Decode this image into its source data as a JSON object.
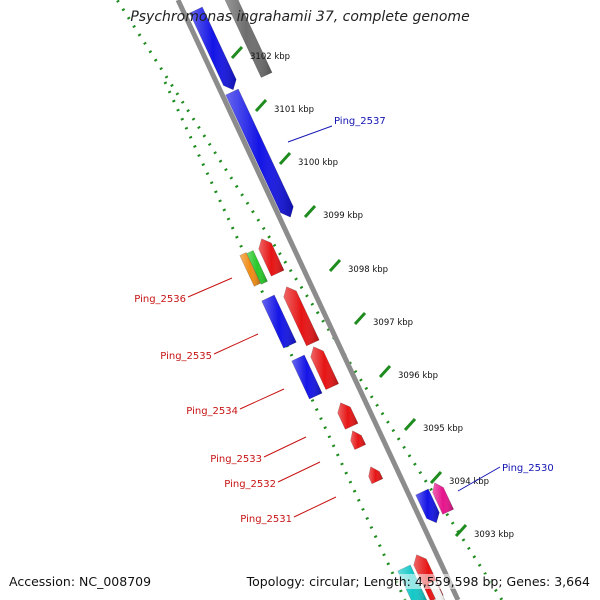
{
  "title": "Psychromonas ingrahamii 37, complete genome",
  "footer": {
    "accession": "Accession: NC_008709",
    "summary": "Topology: circular; Length: 4,559,598 bp; Genes: 3,664"
  },
  "colors": {
    "backbone": "#8c8c8c",
    "dots": "#1e8c1e",
    "forward_label": "#1414b4",
    "reverse_label": "#c81414"
  },
  "ticks": [
    "3102 kbp",
    "3101 kbp",
    "3100 kbp",
    "3099 kbp",
    "3098 kbp",
    "3097 kbp",
    "3096 kbp",
    "3095 kbp",
    "3094 kbp",
    "3093 kbp"
  ],
  "gene_labels": [
    {
      "text": "Ping_2537",
      "strand": "forward"
    },
    {
      "text": "Ping_2530",
      "strand": "forward"
    },
    {
      "text": "Ping_2536",
      "strand": "reverse"
    },
    {
      "text": "Ping_2535",
      "strand": "reverse"
    },
    {
      "text": "Ping_2534",
      "strand": "reverse"
    },
    {
      "text": "Ping_2533",
      "strand": "reverse"
    },
    {
      "text": "Ping_2532",
      "strand": "reverse"
    },
    {
      "text": "Ping_2531",
      "strand": "reverse"
    }
  ]
}
